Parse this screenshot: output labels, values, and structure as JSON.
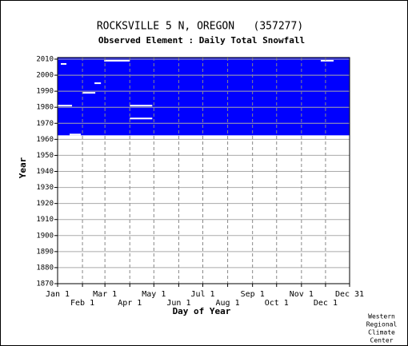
{
  "chart_data": {
    "type": "availability",
    "title": "ROCKSVILLE 5 N, OREGON   (357277)",
    "subtitle": "Observed Element : Daily Total Snowfall",
    "x_label": "Day of Year",
    "y_label": "Year",
    "credit": [
      "Western",
      "Regional",
      "Climate",
      "Center"
    ],
    "color": "#0000ff",
    "xlim": [
      1,
      365
    ],
    "ylim": [
      1870,
      2011
    ],
    "xticks": [
      {
        "value": 1,
        "label": "Jan 1"
      },
      {
        "value": 32,
        "label": "Feb 1"
      },
      {
        "value": 60,
        "label": "Mar 1"
      },
      {
        "value": 91,
        "label": "Apr 1"
      },
      {
        "value": 121,
        "label": "May 1"
      },
      {
        "value": 152,
        "label": "Jun 1"
      },
      {
        "value": 182,
        "label": "Jul 1"
      },
      {
        "value": 213,
        "label": "Aug 1"
      },
      {
        "value": 244,
        "label": "Sep 1"
      },
      {
        "value": 274,
        "label": "Oct 1"
      },
      {
        "value": 305,
        "label": "Nov 1"
      },
      {
        "value": 335,
        "label": "Dec 1"
      },
      {
        "value": 365,
        "label": "Dec 31"
      }
    ],
    "yticks": [
      1870,
      1880,
      1890,
      1900,
      1910,
      1920,
      1930,
      1940,
      1950,
      1960,
      1970,
      1980,
      1990,
      2000,
      2010
    ],
    "coverage": [
      1962.5,
      2011
    ],
    "missing": [
      {
        "year": 2009,
        "start": 59,
        "end": 91
      },
      {
        "year": 1995,
        "start": 47,
        "end": 55
      },
      {
        "year": 1989,
        "start": 32,
        "end": 48
      },
      {
        "year": 1981,
        "start": 1,
        "end": 19
      },
      {
        "year": 1981,
        "start": 91,
        "end": 119
      },
      {
        "year": 1973,
        "start": 91,
        "end": 119
      },
      {
        "year": 1963,
        "start": 16,
        "end": 30
      },
      {
        "year": 2009,
        "start": 329,
        "end": 345
      },
      {
        "year": 2007,
        "start": 5,
        "end": 12
      }
    ]
  }
}
